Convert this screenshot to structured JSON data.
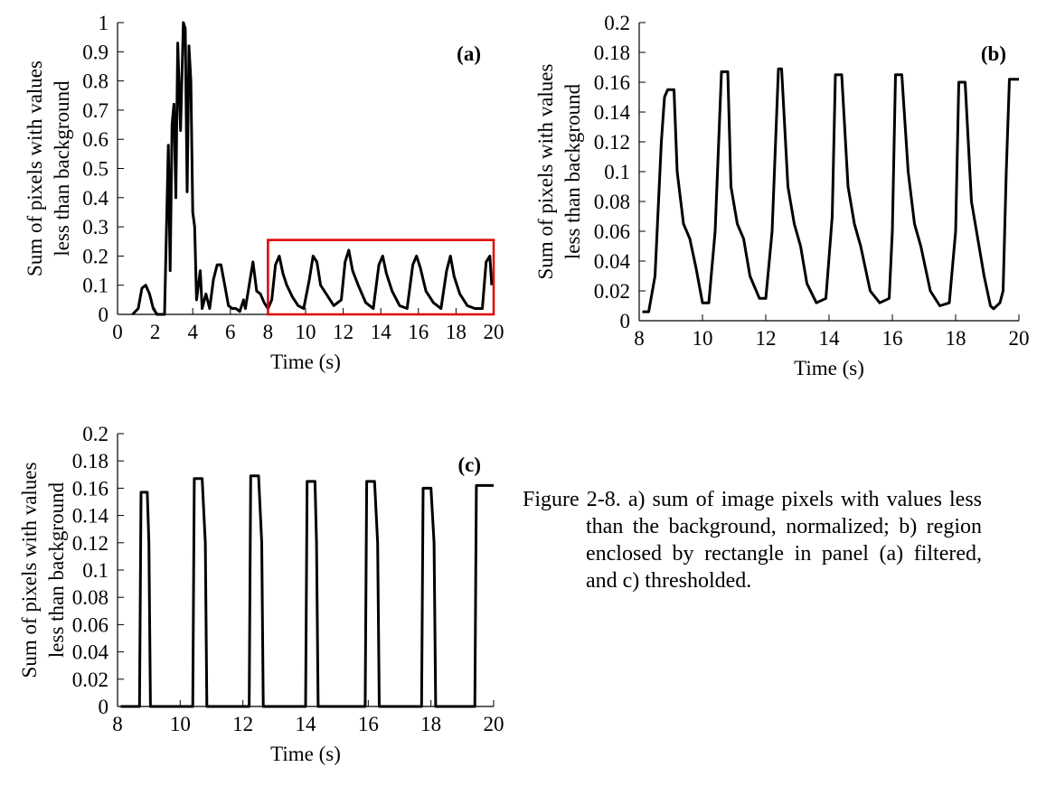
{
  "chart_data": [
    {
      "type": "line",
      "title": "(a)",
      "xlabel": "Time (s)",
      "ylabel": [
        "Sum of pixels with values",
        "less than background"
      ],
      "color": "#000000",
      "xlim": [
        0,
        20
      ],
      "xticks": [
        0,
        2,
        4,
        6,
        8,
        10,
        12,
        14,
        16,
        18,
        20
      ],
      "ylim": [
        0,
        1
      ],
      "yticks": [
        0,
        0.1,
        0.2,
        0.3,
        0.4,
        0.5,
        0.6,
        0.7,
        0.8,
        0.9,
        1
      ],
      "highlight": {
        "x": [
          8,
          20
        ],
        "y": [
          0,
          0.255
        ],
        "color": "#e00000"
      },
      "x": [
        0.8,
        1.1,
        1.3,
        1.5,
        1.7,
        1.9,
        2.1,
        2.5,
        2.7,
        2.8,
        2.9,
        3.0,
        3.1,
        3.2,
        3.35,
        3.5,
        3.6,
        3.7,
        3.8,
        3.9,
        4.0,
        4.1,
        4.2,
        4.4,
        4.5,
        4.7,
        4.9,
        5.1,
        5.3,
        5.5,
        5.7,
        5.9,
        6.1,
        6.3,
        6.5,
        6.7,
        6.8,
        7.0,
        7.2,
        7.4,
        7.6,
        7.8,
        8.0,
        8.2,
        8.4,
        8.6,
        8.8,
        9.0,
        9.3,
        9.6,
        9.9,
        10.2,
        10.4,
        10.6,
        10.8,
        11.1,
        11.5,
        11.9,
        12.1,
        12.3,
        12.5,
        12.8,
        13.2,
        13.6,
        13.9,
        14.1,
        14.3,
        14.6,
        15.0,
        15.4,
        15.7,
        15.9,
        16.1,
        16.4,
        16.8,
        17.2,
        17.5,
        17.7,
        17.9,
        18.2,
        18.6,
        19.0,
        19.4,
        19.6,
        19.8,
        19.9
      ],
      "values": [
        0,
        0.02,
        0.09,
        0.1,
        0.07,
        0.02,
        0,
        0,
        0.58,
        0.15,
        0.65,
        0.72,
        0.4,
        0.93,
        0.63,
        1.0,
        0.98,
        0.42,
        0.92,
        0.8,
        0.35,
        0.3,
        0.05,
        0.15,
        0.02,
        0.07,
        0.02,
        0.12,
        0.17,
        0.17,
        0.1,
        0.03,
        0.02,
        0.02,
        0.01,
        0.05,
        0.02,
        0.1,
        0.18,
        0.08,
        0.07,
        0.04,
        0.02,
        0.05,
        0.17,
        0.2,
        0.14,
        0.1,
        0.06,
        0.03,
        0.02,
        0.12,
        0.2,
        0.18,
        0.1,
        0.07,
        0.03,
        0.05,
        0.18,
        0.22,
        0.15,
        0.1,
        0.04,
        0.02,
        0.17,
        0.2,
        0.14,
        0.08,
        0.03,
        0.02,
        0.17,
        0.2,
        0.16,
        0.08,
        0.04,
        0.02,
        0.15,
        0.2,
        0.13,
        0.07,
        0.03,
        0.02,
        0.02,
        0.18,
        0.2,
        0.1
      ]
    },
    {
      "type": "line",
      "title": "(b)",
      "xlabel": "Time (s)",
      "ylabel": [
        "Sum of pixels with values",
        "less than background"
      ],
      "color": "#000000",
      "xlim": [
        8,
        20
      ],
      "xticks": [
        8,
        10,
        12,
        14,
        16,
        18,
        20
      ],
      "ylim": [
        0,
        0.2
      ],
      "yticks": [
        0,
        0.02,
        0.04,
        0.06,
        0.08,
        0.1,
        0.12,
        0.14,
        0.16,
        0.18,
        0.2
      ],
      "x": [
        8.1,
        8.3,
        8.5,
        8.7,
        8.8,
        8.9,
        9.1,
        9.2,
        9.4,
        9.6,
        9.8,
        10.0,
        10.2,
        10.4,
        10.6,
        10.8,
        10.9,
        11.1,
        11.3,
        11.5,
        11.8,
        12.0,
        12.2,
        12.4,
        12.5,
        12.7,
        12.9,
        13.1,
        13.3,
        13.6,
        13.9,
        14.1,
        14.2,
        14.4,
        14.6,
        14.8,
        15.0,
        15.3,
        15.6,
        15.9,
        16.0,
        16.1,
        16.3,
        16.5,
        16.7,
        16.9,
        17.2,
        17.5,
        17.8,
        18.0,
        18.1,
        18.3,
        18.5,
        18.7,
        18.9,
        19.1,
        19.2,
        19.4,
        19.5,
        19.6,
        19.7,
        20.0
      ],
      "values": [
        0.006,
        0.006,
        0.03,
        0.12,
        0.15,
        0.155,
        0.155,
        0.1,
        0.065,
        0.055,
        0.035,
        0.012,
        0.012,
        0.06,
        0.167,
        0.167,
        0.09,
        0.065,
        0.055,
        0.03,
        0.015,
        0.015,
        0.06,
        0.169,
        0.169,
        0.09,
        0.065,
        0.05,
        0.025,
        0.012,
        0.015,
        0.07,
        0.165,
        0.165,
        0.09,
        0.065,
        0.05,
        0.02,
        0.012,
        0.015,
        0.06,
        0.165,
        0.165,
        0.1,
        0.065,
        0.05,
        0.02,
        0.01,
        0.012,
        0.06,
        0.16,
        0.16,
        0.08,
        0.055,
        0.03,
        0.01,
        0.008,
        0.012,
        0.02,
        0.1,
        0.162,
        0.162
      ]
    },
    {
      "type": "line",
      "title": "(c)",
      "xlabel": "Time (s)",
      "ylabel": [
        "Sum of pixels with values",
        "less than background"
      ],
      "color": "#000000",
      "xlim": [
        8,
        20
      ],
      "xticks": [
        8,
        10,
        12,
        14,
        16,
        18,
        20
      ],
      "ylim": [
        0,
        0.2
      ],
      "yticks": [
        0,
        0.02,
        0.04,
        0.06,
        0.08,
        0.1,
        0.12,
        0.14,
        0.16,
        0.18,
        0.2
      ],
      "x": [
        8.1,
        8.7,
        8.75,
        8.95,
        9.0,
        9.05,
        10.4,
        10.45,
        10.7,
        10.8,
        10.85,
        12.2,
        12.25,
        12.5,
        12.6,
        12.65,
        14.0,
        14.05,
        14.3,
        14.35,
        14.4,
        15.9,
        15.95,
        16.2,
        16.3,
        16.35,
        17.7,
        17.75,
        18.0,
        18.1,
        18.15,
        19.4,
        19.45,
        20.0
      ],
      "values": [
        0,
        0,
        0.157,
        0.157,
        0.12,
        0,
        0,
        0.167,
        0.167,
        0.12,
        0,
        0,
        0.169,
        0.169,
        0.12,
        0,
        0,
        0.165,
        0.165,
        0.12,
        0,
        0,
        0.165,
        0.165,
        0.12,
        0,
        0,
        0.16,
        0.16,
        0.12,
        0,
        0,
        0.162,
        0.162
      ]
    }
  ],
  "caption": "Figure 2-8. a) sum of image pixels with values less than the background, normalized; b) region enclosed by rectangle in panel (a) filtered, and c) thresholded."
}
